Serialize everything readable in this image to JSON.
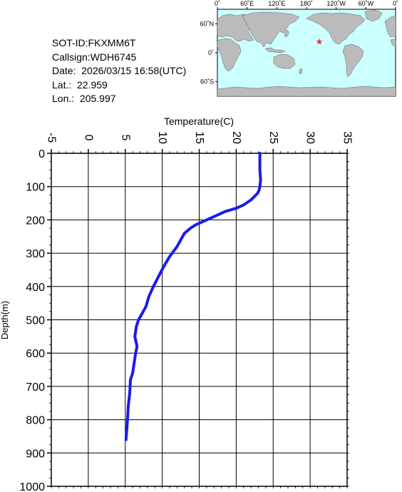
{
  "info": {
    "sot_id": "SOT-ID:FKXMM6T",
    "callsign": "Callsign:WDH6745",
    "date": "Date:  2026/03/15 16:58(UTC)",
    "lat": "Lat.:  22.959",
    "lon": "Lon.:  205.997"
  },
  "map": {
    "lon_ticks": [
      "0˚",
      "60˚E",
      "120˚E",
      "180˚",
      "120˚W",
      "60˚W",
      "0˚"
    ],
    "lat_ticks": [
      "60˚N",
      "0˚",
      "60˚S"
    ],
    "ocean_color": "#ccffff",
    "land_color": "#bbbbbb",
    "marker": {
      "lat": 22.959,
      "lon": 205.997,
      "color": "#ff2222",
      "icon": "star-icon"
    }
  },
  "chart_data": {
    "type": "line",
    "xlabel": "Temperature(C)",
    "ylabel": "Depth(m)",
    "xlim": [
      -5,
      35
    ],
    "ylim": [
      0,
      1000
    ],
    "y_inverted": true,
    "x_axis_position": "top",
    "grid": true,
    "x_ticks": [
      -5,
      0,
      5,
      10,
      15,
      20,
      25,
      30,
      35
    ],
    "y_ticks": [
      0,
      100,
      200,
      300,
      400,
      500,
      600,
      700,
      800,
      900,
      1000
    ],
    "line_color": "#1a1aee",
    "series": [
      {
        "x": [
          23.2,
          23.2,
          23.3,
          23.2,
          23.1,
          22.9,
          22.0,
          21.0,
          20.0,
          18.5,
          17.5,
          16.5,
          15.5,
          14.5,
          13.8,
          13.0,
          12.5,
          12.0,
          11.0,
          10.2,
          9.5,
          8.8,
          8.2,
          7.8,
          7.3,
          6.8,
          6.5,
          6.3,
          6.6,
          6.4,
          6.2,
          6.0,
          5.7,
          5.6,
          5.4,
          5.3,
          5.1
        ],
        "y": [
          0,
          50,
          80,
          100,
          110,
          120,
          140,
          155,
          165,
          175,
          185,
          195,
          205,
          215,
          225,
          240,
          260,
          280,
          310,
          340,
          370,
          400,
          430,
          460,
          480,
          500,
          520,
          550,
          580,
          600,
          630,
          660,
          680,
          720,
          760,
          800,
          860
        ]
      }
    ]
  }
}
